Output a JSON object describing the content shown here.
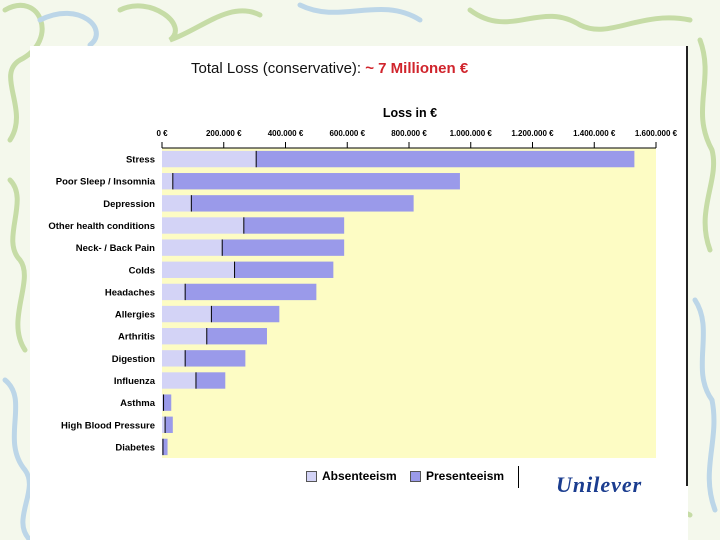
{
  "headline": {
    "prefix": "Total Loss (conservative):",
    "accent": "~ 7 Millionen €"
  },
  "logo_text": "Unilever",
  "colors": {
    "absenteeism": "#d3d3f6",
    "presenteeism": "#9a9aea",
    "plot_bg": "#fdfcc4",
    "accent_red": "#d0242c",
    "deco_green": "#c6dca6",
    "deco_blue": "#bcd6e8"
  },
  "chart_data": {
    "type": "bar",
    "orientation": "horizontal",
    "stacked": true,
    "title": "Loss in €",
    "xlabel": "",
    "ylabel": "",
    "xlim": [
      0,
      1600000
    ],
    "x_ticks": [
      0,
      200000,
      400000,
      600000,
      800000,
      1000000,
      1200000,
      1400000,
      1600000
    ],
    "x_tick_labels": [
      "0 €",
      "200.000 €",
      "400.000 €",
      "600.000 €",
      "800.000 €",
      "1.000.000 €",
      "1.200.000 €",
      "1.400.000 €",
      "1.600.000 €"
    ],
    "x_axis_position": "top",
    "grid": false,
    "legend_position": "bottom",
    "categories": [
      "Stress",
      "Poor Sleep / Insomnia",
      "Depression",
      "Other health conditions",
      "Neck- / Back Pain",
      "Colds",
      "Headaches",
      "Allergies",
      "Arthritis",
      "Digestion",
      "Influenza",
      "Asthma",
      "High Blood Pressure",
      "Diabetes"
    ],
    "series": [
      {
        "name": "Absenteeism",
        "values": [
          305000,
          35000,
          95000,
          265000,
          195000,
          235000,
          75000,
          160000,
          145000,
          75000,
          110000,
          5000,
          10000,
          3000
        ]
      },
      {
        "name": "Presenteeism",
        "values": [
          1225000,
          930000,
          720000,
          325000,
          395000,
          320000,
          425000,
          220000,
          195000,
          195000,
          95000,
          25000,
          25000,
          15000
        ]
      }
    ]
  }
}
